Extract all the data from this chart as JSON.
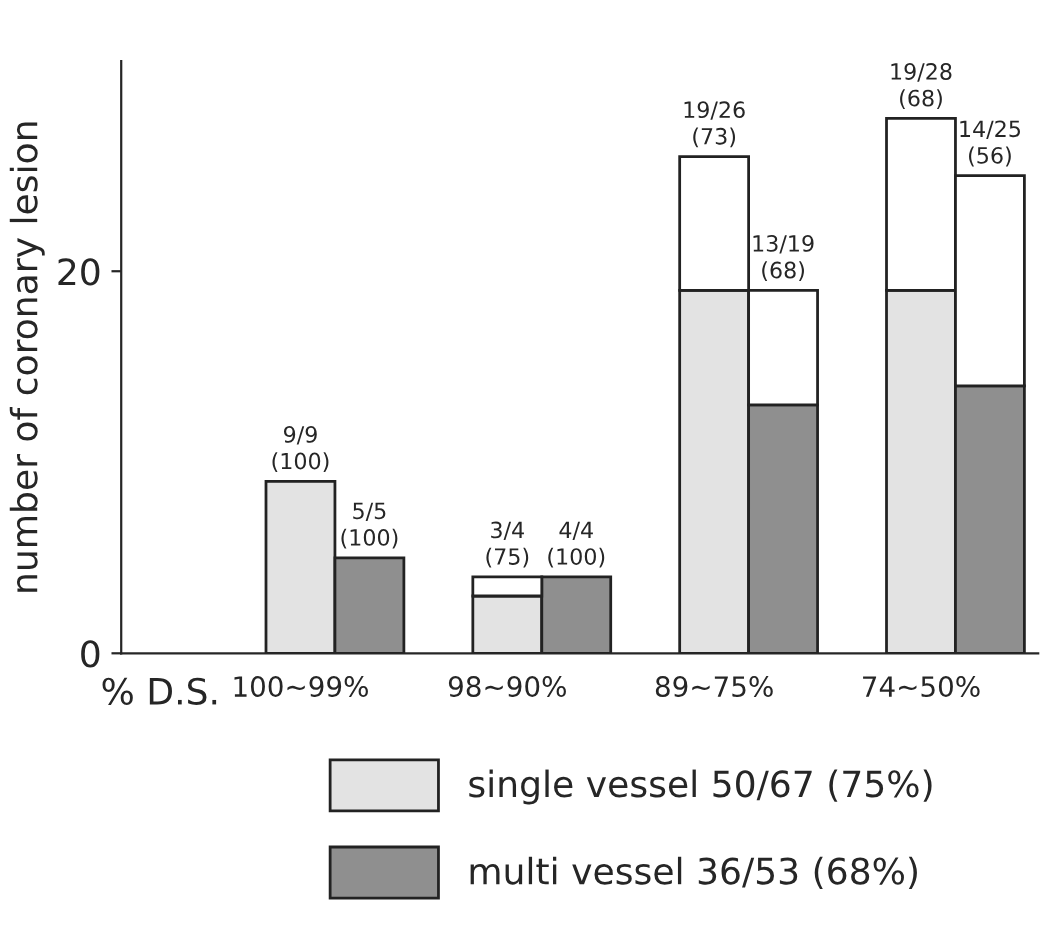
{
  "chart_data": {
    "type": "bar",
    "stacked": true,
    "xlabel": "% D.S.",
    "ylabel": "number of coronary lesion",
    "categories": [
      "100∼99%",
      null,
      null,
      "98∼90%",
      null,
      null,
      "89∼75%",
      null,
      null,
      "74∼50%",
      null
    ],
    "series": [
      {
        "name": "single vessel 50/67 (75%)",
        "color": "#e3e3e3",
        "values": [
          9,
          null,
          null,
          3,
          null,
          null,
          19,
          null,
          null,
          19,
          null
        ]
      },
      {
        "name": "multi vessel 36/53 (68%)",
        "color": "#8f8f8f",
        "values": [
          null,
          5,
          null,
          null,
          4,
          null,
          null,
          13,
          null,
          null,
          14
        ]
      },
      {
        "color": "#ffffff",
        "values": [
          0,
          0,
          null,
          1,
          0,
          null,
          7,
          6,
          null,
          9,
          11
        ],
        "value_labels": [
          "9/9\n(100)",
          "5/5\n(100)",
          null,
          "3/4\n(75)",
          "4/4\n(100)",
          null,
          "19/26\n(73)",
          "13/19\n(68)",
          null,
          "19/28\n(68)",
          "14/25\n(56)"
        ]
      }
    ],
    "ylim": [
      0,
      31
    ],
    "yticks": [
      0,
      20
    ],
    "grid": false,
    "legend": "bottom"
  }
}
